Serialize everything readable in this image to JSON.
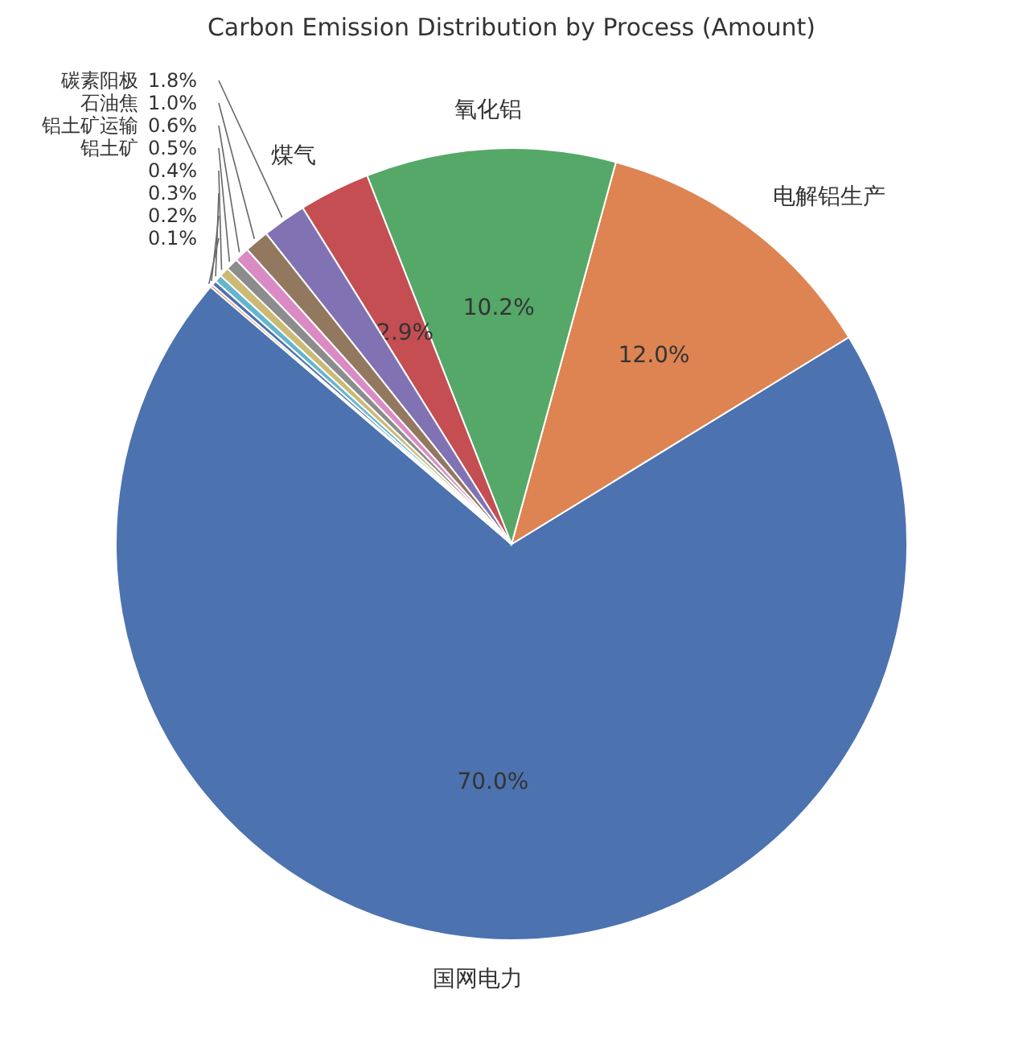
{
  "chart_data": {
    "type": "pie",
    "title": "Carbon Emission Distribution by Process (Amount)",
    "categories": [
      "国网电力",
      "电解铝生产",
      "氧化铝",
      "煤气",
      "碳素阳极",
      "石油焦",
      "铝土矿运输",
      "铝土矿",
      null,
      null,
      null,
      null
    ],
    "values": [
      70.0,
      12.0,
      10.2,
      2.9,
      1.8,
      1.0,
      0.6,
      0.5,
      0.4,
      0.3,
      0.2,
      0.1
    ],
    "colors": [
      "#4c72b0",
      "#dd8452",
      "#55a868",
      "#c44e52",
      "#8172b3",
      "#937860",
      "#da8bc3",
      "#8c8c8c",
      "#ccb974",
      "#64b5cd",
      "#4c72b0",
      "#dd8452"
    ],
    "value_labels": [
      "70.0%",
      "12.0%",
      "10.2%",
      "2.9%",
      "1.8%",
      "1.0%",
      "0.6%",
      "0.5%",
      "0.4%",
      "0.3%",
      "0.2%",
      "0.1%"
    ]
  }
}
